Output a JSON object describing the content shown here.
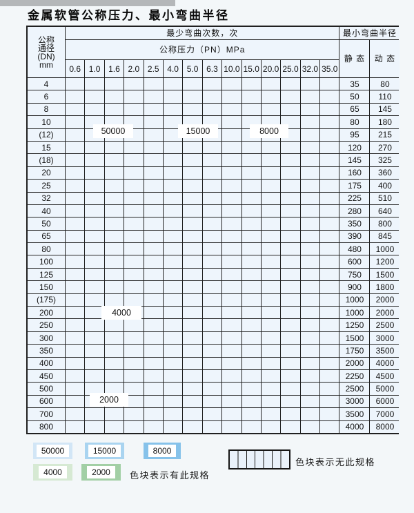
{
  "title": "金属软管公称压力、最小弯曲半径",
  "table": {
    "corner_lines": [
      "公称",
      "通径",
      "(DN)",
      "mm"
    ],
    "bend_cycles_header": "最少弯曲次数，次",
    "pressure_header": "公称压力（PN）MPa",
    "radius_header": "最小弯曲半径",
    "static_label": "静 态",
    "dynamic_label": "动 态",
    "pn_columns": [
      "0.6",
      "1.0",
      "1.6",
      "2.0",
      "2.5",
      "4.0",
      "5.0",
      "6.3",
      "10.0",
      "15.0",
      "20.0",
      "25.0",
      "32.0",
      "35.0"
    ],
    "rows": [
      {
        "dn": "4",
        "colored_through": 14,
        "zone": "blue",
        "static": "35",
        "dynamic": "80"
      },
      {
        "dn": "6",
        "colored_through": 12,
        "zone": "blue",
        "static": "50",
        "dynamic": "110"
      },
      {
        "dn": "8",
        "colored_through": 12,
        "zone": "blue",
        "static": "65",
        "dynamic": "145"
      },
      {
        "dn": "10",
        "colored_through": 12,
        "zone": "blue",
        "static": "80",
        "dynamic": "180"
      },
      {
        "dn": "(12)",
        "colored_through": 12,
        "zone": "blue",
        "static": "95",
        "dynamic": "215"
      },
      {
        "dn": "15",
        "colored_through": 12,
        "zone": "blue",
        "static": "120",
        "dynamic": "270"
      },
      {
        "dn": "(18)",
        "colored_through": 11,
        "zone": "blue",
        "static": "145",
        "dynamic": "325"
      },
      {
        "dn": "20",
        "colored_through": 11,
        "zone": "blue",
        "static": "160",
        "dynamic": "360"
      },
      {
        "dn": "25",
        "colored_through": 10,
        "zone": "blue",
        "static": "175",
        "dynamic": "400"
      },
      {
        "dn": "32",
        "colored_through": 9,
        "zone": "blue",
        "static": "225",
        "dynamic": "510"
      },
      {
        "dn": "40",
        "colored_through": 9,
        "zone": "blue",
        "static": "280",
        "dynamic": "640"
      },
      {
        "dn": "50",
        "colored_through": 8,
        "zone": "blue",
        "static": "350",
        "dynamic": "800"
      },
      {
        "dn": "65",
        "colored_through": 8,
        "zone": "blue",
        "static": "390",
        "dynamic": "845"
      },
      {
        "dn": "80",
        "colored_through": 7,
        "zone": "blue",
        "static": "480",
        "dynamic": "1000"
      },
      {
        "dn": "100",
        "colored_through": 6,
        "zone": "g4000",
        "static": "600",
        "dynamic": "1200"
      },
      {
        "dn": "125",
        "colored_through": 6,
        "zone": "g4000",
        "static": "750",
        "dynamic": "1500"
      },
      {
        "dn": "150",
        "colored_through": 6,
        "zone": "g4000",
        "static": "900",
        "dynamic": "1800"
      },
      {
        "dn": "(175)",
        "colored_through": 6,
        "zone": "g4000",
        "static": "1000",
        "dynamic": "2000"
      },
      {
        "dn": "200",
        "colored_through": 6,
        "zone": "g4000",
        "static": "1000",
        "dynamic": "2000"
      },
      {
        "dn": "250",
        "colored_through": 6,
        "zone": "g4000",
        "static": "1250",
        "dynamic": "2500"
      },
      {
        "dn": "300",
        "colored_through": 6,
        "zone": "g4000",
        "static": "1500",
        "dynamic": "3000"
      },
      {
        "dn": "350",
        "colored_through": 5,
        "zone": "g2000",
        "static": "1750",
        "dynamic": "3500"
      },
      {
        "dn": "400",
        "colored_through": 5,
        "zone": "g2000",
        "static": "2000",
        "dynamic": "4000"
      },
      {
        "dn": "450",
        "colored_through": 5,
        "zone": "g2000",
        "static": "2250",
        "dynamic": "4500"
      },
      {
        "dn": "500",
        "colored_through": 5,
        "zone": "g2000",
        "static": "2500",
        "dynamic": "5000"
      },
      {
        "dn": "600",
        "colored_through": 4,
        "zone": "g2000",
        "static": "3000",
        "dynamic": "6000"
      },
      {
        "dn": "700",
        "colored_through": 3,
        "zone": "g2000",
        "static": "3500",
        "dynamic": "7000"
      },
      {
        "dn": "800",
        "colored_through": 3,
        "zone": "g2000",
        "static": "4000",
        "dynamic": "8000"
      }
    ]
  },
  "overlay_labels": {
    "l50000": "50000",
    "l15000": "15000",
    "l8000": "8000",
    "l4000": "4000",
    "l2000": "2000"
  },
  "legend": {
    "items": [
      {
        "label": "50000",
        "color_key": "c50000"
      },
      {
        "label": "15000",
        "color_key": "c15000"
      },
      {
        "label": "8000",
        "color_key": "c8000"
      },
      {
        "label": "4000",
        "color_key": "c4000"
      },
      {
        "label": "2000",
        "color_key": "c2000"
      }
    ],
    "has_spec_text": "色块表示有此规格",
    "no_spec_text": "色块表示无此规格"
  },
  "colors": {
    "c50000": "#d2e6f6",
    "c15000": "#a9d4f0",
    "c8000": "#86c2ea",
    "c4000": "#d6e9d3",
    "c2000": "#a2cfa5",
    "cellBg": "#eef5fc",
    "headerBg": "#e9f1fa",
    "grid": "#202020"
  }
}
